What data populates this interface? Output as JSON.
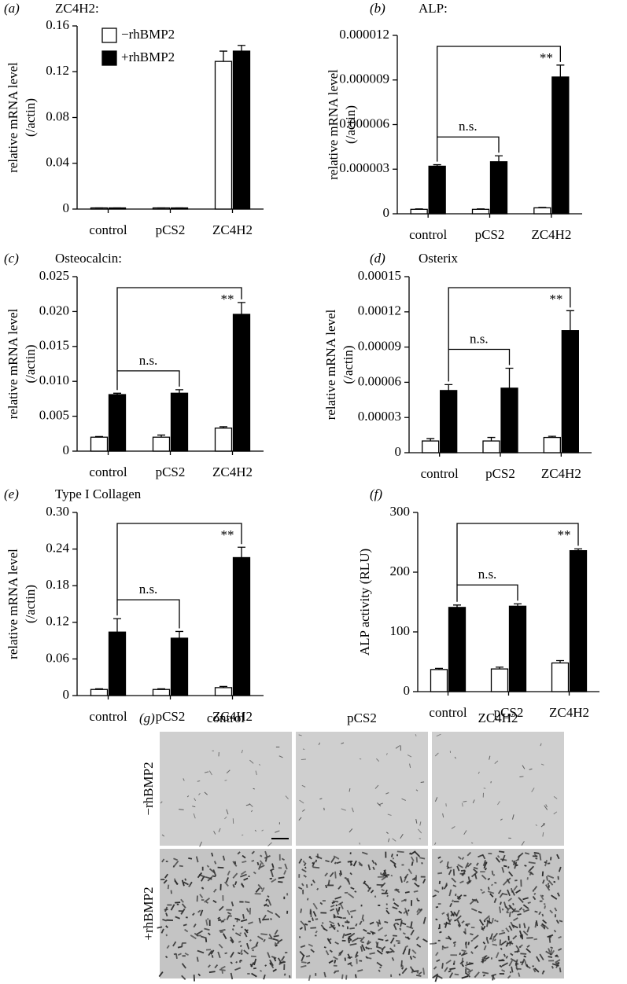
{
  "chart_data": [
    {
      "type": "bar",
      "panel": "(a)",
      "title": "ZC4H2:",
      "ylabel": [
        "relative mRNA level",
        "(/actin)"
      ],
      "categories": [
        "control",
        "pCS2",
        "ZC4H2"
      ],
      "legend": "upper left",
      "series": [
        {
          "name": "−rhBMP2",
          "color": "#ffffff",
          "values": [
            0.001,
            0.001,
            0.129
          ],
          "errors": [
            0,
            0,
            0.009
          ]
        },
        {
          "name": "+rhBMP2",
          "color": "#000000",
          "values": [
            0.001,
            0.001,
            0.138
          ],
          "errors": [
            0,
            0,
            0.005
          ]
        }
      ],
      "ylim": [
        0,
        0.16
      ],
      "yticks": [
        0,
        0.04,
        0.08,
        0.12,
        0.16
      ]
    },
    {
      "type": "bar",
      "panel": "(b)",
      "title": "ALP:",
      "ylabel": [
        "relative mRNA level",
        "(/actin)"
      ],
      "categories": [
        "control",
        "pCS2",
        "ZC4H2"
      ],
      "series": [
        {
          "name": "−rhBMP2",
          "color": "#ffffff",
          "values": [
            3e-07,
            3e-07,
            4e-07
          ],
          "errors": [
            3e-08,
            3e-08,
            3e-08
          ]
        },
        {
          "name": "+rhBMP2",
          "color": "#000000",
          "values": [
            3.2e-06,
            3.5e-06,
            9.2e-06
          ],
          "errors": [
            1e-07,
            4e-07,
            8e-07
          ]
        }
      ],
      "annotations": [
        "n.s.",
        "**"
      ],
      "ylim": [
        0,
        1.2e-05
      ],
      "yticks": [
        0,
        3e-06,
        6e-06,
        9e-06,
        1.2e-05
      ]
    },
    {
      "type": "bar",
      "panel": "(c)",
      "title": "Osteocalcin:",
      "ylabel": [
        "relative mRNA level",
        "(/actin)"
      ],
      "categories": [
        "control",
        "pCS2",
        "ZC4H2"
      ],
      "series": [
        {
          "name": "−rhBMP2",
          "color": "#ffffff",
          "values": [
            0.002,
            0.002,
            0.0033
          ],
          "errors": [
            0.0001,
            0.0003,
            0.0002
          ]
        },
        {
          "name": "+rhBMP2",
          "color": "#000000",
          "values": [
            0.0081,
            0.0083,
            0.0196
          ],
          "errors": [
            0.0002,
            0.0005,
            0.0017
          ]
        }
      ],
      "annotations": [
        "n.s.",
        "**"
      ],
      "ylim": [
        0,
        0.025
      ],
      "yticks": [
        0,
        0.005,
        {
          "value": 0.01,
          "label": "0.010"
        },
        0.015,
        {
          "value": 0.02,
          "label": "0.020"
        },
        0.025
      ]
    },
    {
      "type": "bar",
      "panel": "(d)",
      "title": "Osterix",
      "ylabel": [
        "relative mRNA level",
        "(/actin)"
      ],
      "categories": [
        "control",
        "pCS2",
        "ZC4H2"
      ],
      "series": [
        {
          "name": "−rhBMP2",
          "color": "#ffffff",
          "values": [
            1e-05,
            1e-05,
            1.3e-05
          ],
          "errors": [
            2e-06,
            3e-06,
            1e-06
          ]
        },
        {
          "name": "+rhBMP2",
          "color": "#000000",
          "values": [
            5.3e-05,
            5.5e-05,
            0.000104
          ],
          "errors": [
            5e-06,
            1.7e-05,
            1.7e-05
          ]
        }
      ],
      "annotations": [
        "n.s.",
        "**"
      ],
      "ylim": [
        0,
        0.00015
      ],
      "yticks": [
        0,
        3e-05,
        6e-05,
        9e-05,
        0.00012,
        0.00015
      ]
    },
    {
      "type": "bar",
      "panel": "(e)",
      "title": "Type I Collagen",
      "ylabel": [
        "relative mRNA level",
        "(/actin)"
      ],
      "categories": [
        "control",
        "pCS2",
        "ZC4H2"
      ],
      "series": [
        {
          "name": "−rhBMP2",
          "color": "#ffffff",
          "values": [
            0.01,
            0.01,
            0.013
          ],
          "errors": [
            0.001,
            0.001,
            0.002
          ]
        },
        {
          "name": "+rhBMP2",
          "color": "#000000",
          "values": [
            0.104,
            0.094,
            0.226
          ],
          "errors": [
            0.022,
            0.011,
            0.017
          ]
        }
      ],
      "annotations": [
        "n.s.",
        "**"
      ],
      "ylim": [
        0,
        0.3
      ],
      "yticks": [
        0,
        0.06,
        0.12,
        0.18,
        0.24,
        {
          "value": 0.3,
          "label": "0.30"
        }
      ]
    },
    {
      "type": "bar",
      "panel": "(f)",
      "ylabel": [
        "ALP activity (RLU)"
      ],
      "categories": [
        "control",
        "pCS2",
        "ZC4H2"
      ],
      "series": [
        {
          "name": "−rhBMP2",
          "color": "#ffffff",
          "values": [
            37,
            38,
            48
          ],
          "errors": [
            2,
            3,
            4
          ]
        },
        {
          "name": "+rhBMP2",
          "color": "#000000",
          "values": [
            141,
            143,
            236
          ],
          "errors": [
            4,
            4,
            3
          ]
        }
      ],
      "annotations": [
        "n.s.",
        "**"
      ],
      "ylim": [
        0,
        300
      ],
      "yticks": [
        0,
        100,
        200,
        300
      ]
    }
  ],
  "panel_g": {
    "label": "(g)",
    "columns": [
      "control",
      "pCS2",
      "ZC4H2"
    ],
    "rows": [
      "−rhBMP2",
      "+rhBMP2"
    ]
  }
}
